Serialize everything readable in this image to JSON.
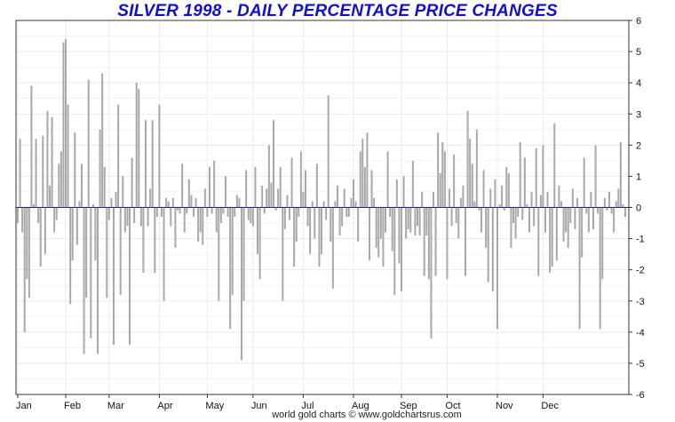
{
  "colors": {
    "title": "#1010d0",
    "bar": "#a8a8a8",
    "zero_line": "#2020c0",
    "grid": "#e4ecf4",
    "frame": "#333333"
  },
  "chart_data": {
    "type": "bar",
    "title": "SILVER 1998 - DAILY PERCENTAGE PRICE CHANGES",
    "xlabel": "",
    "ylabel": "",
    "ylim": [
      -6,
      6
    ],
    "y_ticks": [
      -6,
      -5,
      -4,
      -3,
      -2,
      -1,
      0,
      1,
      2,
      3,
      4,
      5,
      6
    ],
    "y_axis_side": "right",
    "grid": true,
    "x_axis": "trading days, Jan–Dec 1998",
    "months": [
      "Jan",
      "Feb",
      "Mar",
      "Apr",
      "May",
      "Jun",
      "Jul",
      "Aug",
      "Sep",
      "Oct",
      "Nov",
      "Dec"
    ],
    "month_start_index": [
      0,
      21,
      40,
      62,
      83,
      103,
      125,
      147,
      168,
      188,
      210,
      230
    ],
    "values": [
      -0.5,
      2.2,
      -0.8,
      -4.0,
      -2.3,
      -2.9,
      3.9,
      0.1,
      2.2,
      -0.5,
      -1.9,
      2.3,
      -1.5,
      3.1,
      0.7,
      2.9,
      -0.8,
      -0.4,
      1.4,
      1.8,
      5.3,
      5.4,
      3.3,
      -3.1,
      -1.7,
      2.4,
      -1.2,
      0.2,
      1.4,
      -4.7,
      -2.9,
      4.1,
      -4.2,
      0.1,
      -1.7,
      -4.7,
      2.5,
      4.3,
      1.3,
      -2.9,
      -0.4,
      0.3,
      -4.4,
      0.5,
      3.3,
      -2.8,
      1.0,
      -0.8,
      -0.6,
      -4.4,
      1.6,
      -0.5,
      4.0,
      3.8,
      -0.6,
      -2.1,
      2.8,
      -0.6,
      0.6,
      2.8,
      -2.1,
      -0.3,
      3.3,
      -0.3,
      -3.0,
      0.3,
      0.2,
      -0.6,
      0.3,
      -1.3,
      -0.1,
      -0.2,
      1.4,
      -0.8,
      -0.2,
      0.9,
      0.4,
      -0.3,
      0.3,
      -1.1,
      -0.8,
      -1.2,
      0.6,
      -0.3,
      1.3,
      -0.2,
      1.5,
      -0.8,
      -3.0,
      -0.5,
      -0.2,
      1.0,
      -0.3,
      -3.9,
      -2.8,
      -0.3,
      0.4,
      0.3,
      -4.9,
      -3.0,
      1.2,
      -0.4,
      -0.5,
      -0.6,
      1.3,
      -1.5,
      -2.3,
      0.7,
      -0.2,
      0.6,
      2.0,
      0.8,
      2.8,
      -0.1,
      0.6,
      1.3,
      -3.0,
      -0.7,
      0.4,
      -0.4,
      1.6,
      -1.9,
      -1.1,
      -0.3,
      1.8,
      0.5,
      1.2,
      -0.6,
      -1.5,
      0.2,
      -1.0,
      1.4,
      -1.9,
      -1.5,
      0.2,
      -0.4,
      3.6,
      -1.1,
      -2.6,
      0.2,
      0.7,
      -0.9,
      -0.6,
      0.6,
      -0.3,
      -0.3,
      0.3,
      0.9,
      0.2,
      -1.1,
      1.8,
      2.2,
      1.3,
      2.4,
      -1.7,
      1.2,
      0.3,
      -1.3,
      -1.6,
      -1.0,
      -1.9,
      -0.8,
      1.8,
      -0.3,
      -1.4,
      -2.8,
      0.9,
      -1.8,
      -2.7,
      1.0,
      -1.0,
      -0.7,
      -0.8,
      1.5,
      -0.9,
      -0.6,
      -0.9,
      0.5,
      -2.2,
      -0.9,
      -2.3,
      -4.2,
      0.5,
      -2.2,
      2.4,
      1.1,
      2.1,
      1.8,
      -2.3,
      0.6,
      -0.6,
      1.7,
      -0.5,
      -1.0,
      0.3,
      0.7,
      -2.2,
      3.1,
      2.2,
      1.4,
      0.2,
      2.5,
      -0.1,
      -0.8,
      1.2,
      -1.3,
      -2.4,
      0.6,
      -2.7,
      0.9,
      -3.9,
      0.1,
      0.7,
      -0.1,
      1.3,
      1.1,
      -1.3,
      -0.5,
      -1.0,
      -0.3,
      2.1,
      -0.4,
      1.6,
      0.1,
      -0.8,
      0.5,
      -0.6,
      1.9,
      -2.2,
      0.4,
      2.0,
      -0.8,
      0.5,
      -2.1,
      -1.9,
      2.7,
      -1.7,
      0.7,
      0.2,
      -1.1,
      -0.8,
      -1.3,
      -0.5,
      0.6,
      -0.7,
      0.3,
      -3.9,
      -1.6,
      1.6,
      -0.2,
      -0.8,
      0.5,
      -0.7,
      2.0,
      -0.2,
      -3.9,
      -2.3,
      0.3,
      -0.1,
      0.5,
      -0.2,
      -0.8,
      0.2,
      0.6,
      2.1,
      0.1,
      -0.3
    ]
  },
  "footer": {
    "credit": "world gold charts © www.goldchartsrus.com"
  }
}
